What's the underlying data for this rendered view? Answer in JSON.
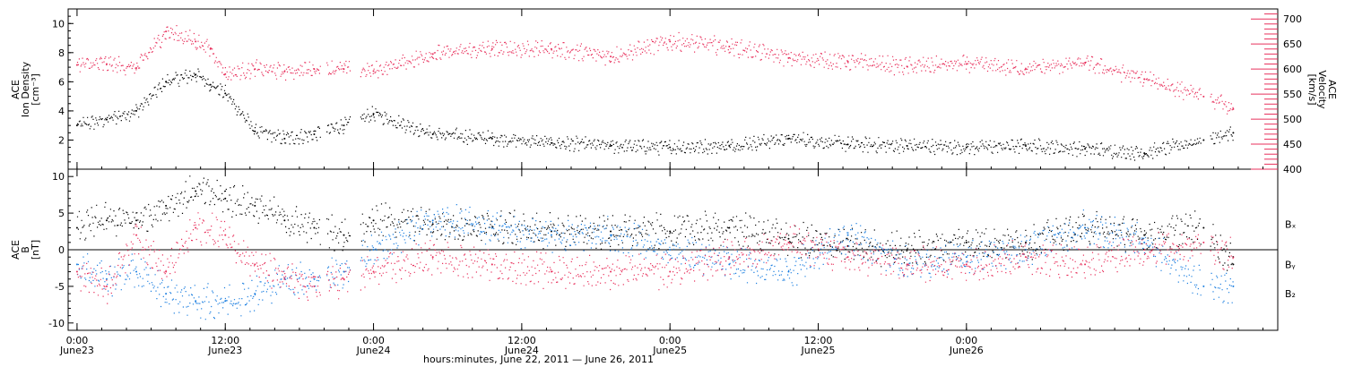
{
  "colors": {
    "black": "#000000",
    "pink": "#e8305c",
    "blue": "#1a7ee0"
  },
  "chart_data": [
    {
      "type": "scatter",
      "panel": "top",
      "left_label_lines": [
        "ACE",
        "Ion Density",
        "[cm⁻³]"
      ],
      "right_label_lines": [
        "ACE",
        "Velocity",
        "[km/s]"
      ],
      "ylim_left": [
        0,
        11
      ],
      "yticks_left": [
        "2",
        "4",
        "6",
        "8",
        "10"
      ],
      "ylim_right": [
        400,
        720
      ],
      "yticks_right": [
        "400",
        "450",
        "500",
        "550",
        "600",
        "650",
        "700"
      ],
      "series": [
        {
          "axis": "left",
          "color": "black",
          "x": [
            0,
            0.1,
            0.2,
            0.3,
            0.4,
            0.45,
            0.5,
            0.6,
            0.7,
            0.8,
            0.9,
            1.0,
            1.2,
            1.4,
            1.6,
            1.8,
            2.0,
            2.2,
            2.4,
            2.6,
            2.8,
            3.0,
            3.2,
            3.4,
            3.6,
            3.8,
            3.9
          ],
          "y": [
            3.0,
            3.4,
            4.0,
            6.0,
            6.5,
            5.8,
            5.2,
            2.6,
            2.1,
            2.4,
            3.0,
            3.8,
            2.4,
            2.1,
            1.8,
            1.6,
            1.5,
            1.6,
            2.1,
            1.7,
            1.6,
            1.5,
            1.6,
            1.4,
            1.1,
            2.0,
            2.5
          ]
        },
        {
          "axis": "right",
          "color": "pink",
          "x": [
            0,
            0.1,
            0.2,
            0.3,
            0.4,
            0.45,
            0.5,
            0.6,
            0.7,
            0.8,
            0.9,
            1.0,
            1.2,
            1.4,
            1.6,
            1.8,
            2.0,
            2.2,
            2.4,
            2.6,
            2.8,
            3.0,
            3.2,
            3.4,
            3.6,
            3.8,
            3.9
          ],
          "y": [
            608,
            610,
            602,
            675,
            655,
            640,
            590,
            600,
            595,
            600,
            600,
            596,
            630,
            640,
            640,
            625,
            655,
            645,
            622,
            615,
            605,
            610,
            600,
            612,
            580,
            545,
            520
          ]
        }
      ]
    },
    {
      "type": "scatter",
      "panel": "bottom",
      "left_label_lines": [
        "ACE",
        "B",
        "[nT]"
      ],
      "ylim": [
        -11,
        11
      ],
      "yticks": [
        "-10",
        "-5",
        "0",
        "5",
        "10"
      ],
      "legend": [
        "Bₓ",
        "Bᵧ",
        "B₂"
      ],
      "series": [
        {
          "name": "Bₓ",
          "color": "black",
          "x": [
            0,
            0.1,
            0.2,
            0.3,
            0.4,
            0.5,
            0.6,
            0.7,
            0.8,
            0.9,
            1.0,
            1.2,
            1.4,
            1.6,
            1.8,
            2.0,
            2.2,
            2.4,
            2.6,
            2.8,
            3.0,
            3.2,
            3.4,
            3.6,
            3.8,
            3.9
          ],
          "y": [
            3,
            4,
            4,
            6,
            8,
            7,
            6,
            4,
            3,
            2,
            4,
            3.5,
            3,
            2.5,
            2.5,
            2.5,
            3,
            1.5,
            0.5,
            0,
            1,
            1,
            3,
            2,
            3,
            -2
          ]
        },
        {
          "name": "Bᵧ",
          "color": "blue",
          "x": [
            0,
            0.1,
            0.2,
            0.3,
            0.4,
            0.5,
            0.6,
            0.7,
            0.8,
            0.9,
            1.0,
            1.2,
            1.4,
            1.6,
            1.8,
            2.0,
            2.2,
            2.4,
            2.6,
            2.8,
            3.0,
            3.2,
            3.4,
            3.6,
            3.8,
            3.9
          ],
          "y": [
            -2,
            -4,
            -3,
            -6,
            -7,
            -7,
            -6,
            -4,
            -4,
            -3,
            0,
            4,
            3,
            2,
            2,
            0,
            -2,
            -3,
            2,
            -2,
            -1,
            0,
            3,
            1,
            -5,
            -5
          ]
        },
        {
          "name": "B₂",
          "color": "pink",
          "x": [
            0,
            0.1,
            0.2,
            0.3,
            0.4,
            0.5,
            0.6,
            0.7,
            0.8,
            0.9,
            1.0,
            1.2,
            1.4,
            1.6,
            1.8,
            2.0,
            2.2,
            2.4,
            2.6,
            2.8,
            3.0,
            3.2,
            3.4,
            3.6,
            3.8,
            3.9
          ],
          "y": [
            -3,
            -5,
            2,
            -3,
            3,
            2,
            -2,
            -4,
            -5,
            -4,
            -3,
            -1,
            -2,
            -3,
            -3,
            -3,
            -1,
            1,
            -1,
            -2,
            -2,
            -1,
            -2,
            0,
            1,
            -1
          ]
        }
      ]
    }
  ],
  "x_axis": {
    "ticks": [
      {
        "x": 0,
        "time": "0:00",
        "date": "June23"
      },
      {
        "x": 0.5,
        "time": "12:00",
        "date": "June23"
      },
      {
        "x": 1,
        "time": "0:00",
        "date": "June24"
      },
      {
        "x": 1.5,
        "time": "12:00",
        "date": "June24"
      },
      {
        "x": 2,
        "time": "0:00",
        "date": "June25"
      },
      {
        "x": 2.5,
        "time": "12:00",
        "date": "June25"
      },
      {
        "x": 3,
        "time": "0:00",
        "date": "June26"
      }
    ],
    "xlim": [
      -0.03,
      4.05
    ],
    "minor_per_major": 12,
    "title": "hours:minutes, June 22, 2011 — June 26, 2011"
  }
}
